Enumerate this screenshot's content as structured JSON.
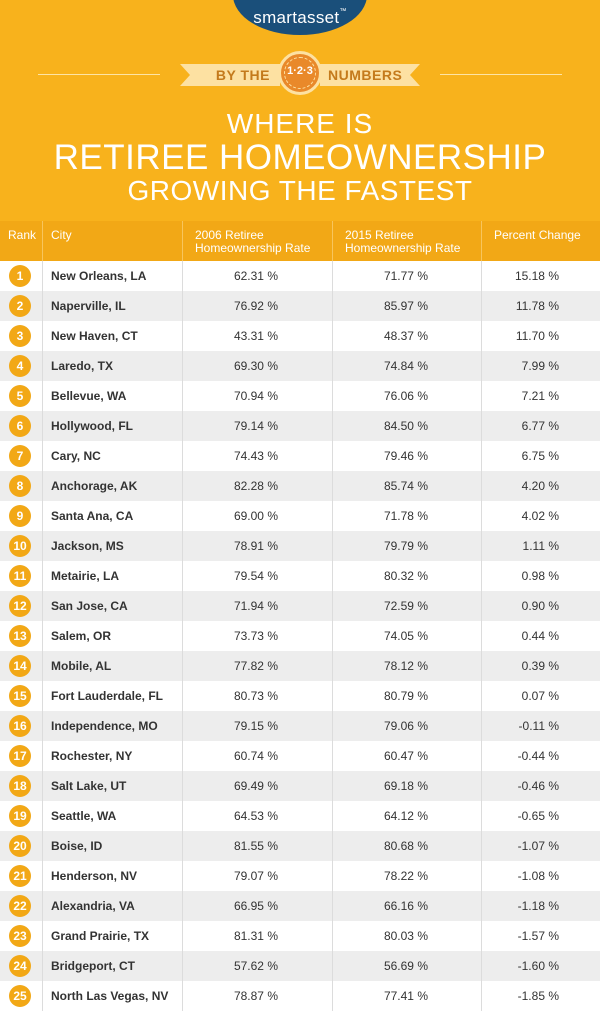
{
  "header": {
    "logo": "smartasset",
    "logo_tm": "™",
    "ribbon_left": "BY THE",
    "ribbon_badge": "1·2·3",
    "ribbon_right": "NUMBERS",
    "title_line1": "WHERE IS",
    "title_line2": "RETIREE HOMEOWNERSHIP",
    "title_line3": "GROWING THE FASTEST"
  },
  "colors": {
    "header_bg": "#f8b21c",
    "table_header_bg": "#f2a816",
    "badge_bg": "#f2a816",
    "logo_badge_bg": "#1a4f7a",
    "row_alt_bg": "#ededed"
  },
  "columns": {
    "rank": "Rank",
    "city": "City",
    "rate_2006_line1": "2006 Retiree",
    "rate_2006_line2": "Homeownership Rate",
    "rate_2015_line1": "2015 Retiree",
    "rate_2015_line2": "Homeownership Rate",
    "change": "Percent Change"
  },
  "rows": [
    {
      "rank": "1",
      "city": "New Orleans, LA",
      "rate_2006": "62.31 %",
      "rate_2015": "71.77 %",
      "change": "15.18 %"
    },
    {
      "rank": "2",
      "city": "Naperville, IL",
      "rate_2006": "76.92 %",
      "rate_2015": "85.97 %",
      "change": "11.78 %"
    },
    {
      "rank": "3",
      "city": "New Haven, CT",
      "rate_2006": "43.31 %",
      "rate_2015": "48.37 %",
      "change": "11.70 %"
    },
    {
      "rank": "4",
      "city": "Laredo, TX",
      "rate_2006": "69.30 %",
      "rate_2015": "74.84 %",
      "change": "7.99 %"
    },
    {
      "rank": "5",
      "city": "Bellevue, WA",
      "rate_2006": "70.94 %",
      "rate_2015": "76.06 %",
      "change": "7.21 %"
    },
    {
      "rank": "6",
      "city": "Hollywood, FL",
      "rate_2006": "79.14 %",
      "rate_2015": "84.50 %",
      "change": "6.77 %"
    },
    {
      "rank": "7",
      "city": "Cary, NC",
      "rate_2006": "74.43 %",
      "rate_2015": "79.46 %",
      "change": "6.75 %"
    },
    {
      "rank": "8",
      "city": "Anchorage, AK",
      "rate_2006": "82.28 %",
      "rate_2015": "85.74 %",
      "change": "4.20 %"
    },
    {
      "rank": "9",
      "city": "Santa Ana, CA",
      "rate_2006": "69.00 %",
      "rate_2015": "71.78 %",
      "change": "4.02 %"
    },
    {
      "rank": "10",
      "city": "Jackson, MS",
      "rate_2006": "78.91 %",
      "rate_2015": "79.79 %",
      "change": "1.11 %"
    },
    {
      "rank": "11",
      "city": "Metairie, LA",
      "rate_2006": "79.54 %",
      "rate_2015": "80.32 %",
      "change": "0.98 %"
    },
    {
      "rank": "12",
      "city": "San Jose, CA",
      "rate_2006": "71.94 %",
      "rate_2015": "72.59 %",
      "change": "0.90 %"
    },
    {
      "rank": "13",
      "city": "Salem, OR",
      "rate_2006": "73.73 %",
      "rate_2015": "74.05 %",
      "change": "0.44 %"
    },
    {
      "rank": "14",
      "city": "Mobile, AL",
      "rate_2006": "77.82 %",
      "rate_2015": "78.12 %",
      "change": "0.39 %"
    },
    {
      "rank": "15",
      "city": "Fort Lauderdale, FL",
      "rate_2006": "80.73 %",
      "rate_2015": "80.79 %",
      "change": "0.07 %"
    },
    {
      "rank": "16",
      "city": "Independence, MO",
      "rate_2006": "79.15 %",
      "rate_2015": "79.06 %",
      "change": "-0.11 %"
    },
    {
      "rank": "17",
      "city": "Rochester, NY",
      "rate_2006": "60.74 %",
      "rate_2015": "60.47 %",
      "change": "-0.44 %"
    },
    {
      "rank": "18",
      "city": "Salt Lake, UT",
      "rate_2006": "69.49 %",
      "rate_2015": "69.18 %",
      "change": "-0.46 %"
    },
    {
      "rank": "19",
      "city": "Seattle, WA",
      "rate_2006": "64.53 %",
      "rate_2015": "64.12 %",
      "change": "-0.65 %"
    },
    {
      "rank": "20",
      "city": "Boise, ID",
      "rate_2006": "81.55 %",
      "rate_2015": "80.68 %",
      "change": "-1.07 %"
    },
    {
      "rank": "21",
      "city": "Henderson, NV",
      "rate_2006": "79.07 %",
      "rate_2015": "78.22 %",
      "change": "-1.08 %"
    },
    {
      "rank": "22",
      "city": "Alexandria, VA",
      "rate_2006": "66.95 %",
      "rate_2015": "66.16 %",
      "change": "-1.18 %"
    },
    {
      "rank": "23",
      "city": "Grand Prairie, TX",
      "rate_2006": "81.31 %",
      "rate_2015": "80.03 %",
      "change": "-1.57 %"
    },
    {
      "rank": "24",
      "city": "Bridgeport, CT",
      "rate_2006": "57.62 %",
      "rate_2015": "56.69 %",
      "change": "-1.60 %"
    },
    {
      "rank": "25",
      "city": "North Las Vegas, NV",
      "rate_2006": "78.87 %",
      "rate_2015": "77.41 %",
      "change": "-1.85 %"
    }
  ]
}
